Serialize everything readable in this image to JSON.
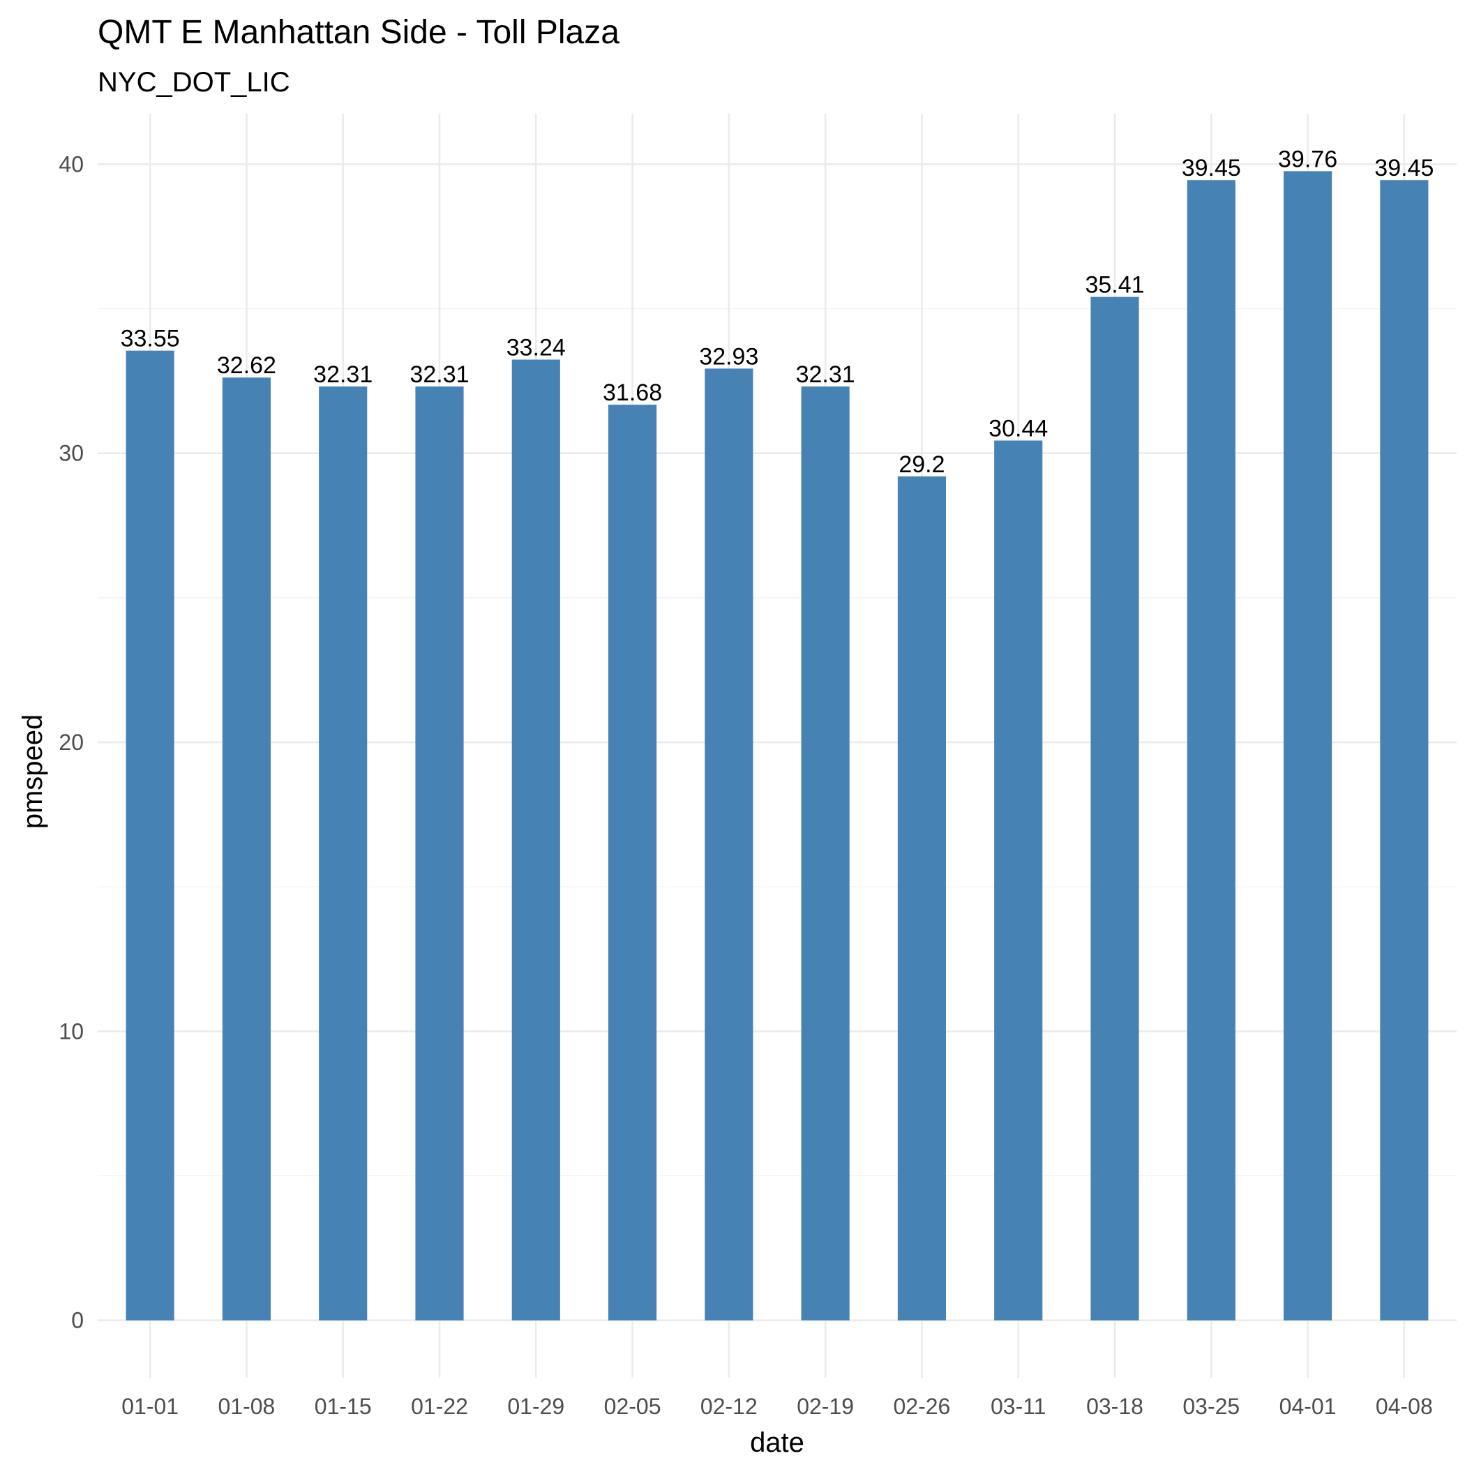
{
  "chart_data": {
    "type": "bar",
    "title": "QMT E Manhattan Side - Toll Plaza",
    "subtitle": "NYC_DOT_LIC",
    "xlabel": "date",
    "ylabel": "pmspeed",
    "categories": [
      "01-01",
      "01-08",
      "01-15",
      "01-22",
      "01-29",
      "02-05",
      "02-12",
      "02-19",
      "02-26",
      "03-11",
      "03-18",
      "03-25",
      "04-01",
      "04-08"
    ],
    "values": [
      33.55,
      32.62,
      32.31,
      32.31,
      33.24,
      31.68,
      32.93,
      32.31,
      29.2,
      30.44,
      35.41,
      39.45,
      39.76,
      39.45
    ],
    "value_labels": [
      "33.55",
      "32.62",
      "32.31",
      "32.31",
      "33.24",
      "31.68",
      "32.93",
      "32.31",
      "29.2",
      "30.44",
      "35.41",
      "39.45",
      "39.76",
      "39.45"
    ],
    "ylim": [
      -1.9879,
      41.7479
    ],
    "yticks": [
      0,
      10,
      20,
      30,
      40
    ],
    "ytick_labels": [
      "0",
      "10",
      "20",
      "30",
      "40"
    ],
    "grid": true,
    "legend": "none",
    "bar_color": "#4682b4"
  }
}
